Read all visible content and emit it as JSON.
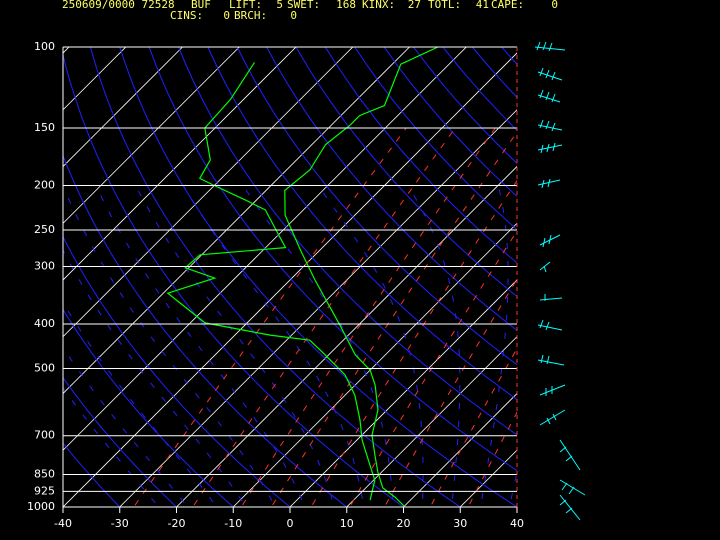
{
  "header": {
    "station": "250609/0000 72528",
    "site": "BUF",
    "indices": [
      {
        "label": "LIFT:",
        "value": 5
      },
      {
        "label": "SWET:",
        "value": 168
      },
      {
        "label": "KINX:",
        "value": 27
      },
      {
        "label": "TOTL:",
        "value": 41
      },
      {
        "label": "CAPE:",
        "value": 0
      },
      {
        "label": "CINS:",
        "value": 0
      },
      {
        "label": "BRCH:",
        "value": 0
      }
    ]
  },
  "chart_data": {
    "type": "skewt",
    "log_y": true,
    "ylim": [
      1000,
      100
    ],
    "yticks": [
      100,
      150,
      200,
      250,
      300,
      400,
      500,
      700,
      850,
      925,
      1000
    ],
    "xlim": [
      -40,
      40
    ],
    "xticks": [
      -40,
      -30,
      -20,
      -10,
      0,
      10,
      20,
      30,
      40
    ],
    "grid": true,
    "series": [
      {
        "color": "#00ff00",
        "y": [
          1000,
          951,
          909,
          839,
          771,
          698,
          615,
          543,
          504,
          467,
          402,
          321,
          276,
          232,
          205,
          185,
          163,
          148,
          141,
          134,
          109,
          100
        ],
        "values": [
          20.3,
          16.7,
          13.0,
          9.3,
          5.8,
          1.8,
          -1.6,
          -6.5,
          -10,
          -15.3,
          -23.3,
          -35.6,
          -43.5,
          -52.3,
          -56.7,
          -55.9,
          -57.6,
          -56.7,
          -56.7,
          -54.1,
          -58.5,
          -55
        ]
      },
      {
        "color": "#00ff00",
        "y": [
          966,
          874,
          790,
          715,
          647,
          571,
          516,
          467,
          434,
          423,
          398,
          343,
          318,
          302,
          283,
          273,
          226,
          215,
          200,
          193,
          176,
          150,
          130,
          108
        ],
        "values": [
          12.9,
          10.2,
          5.5,
          0.9,
          -3,
          -8.3,
          -13.6,
          -20.6,
          -25.9,
          -33.8,
          -47.4,
          -59.2,
          -53.6,
          -60.6,
          -60.3,
          -46.5,
          -56.7,
          -62,
          -70,
          -73.8,
          -75.2,
          -81.8,
          -82.3,
          -84.6
        ]
      }
    ]
  }
}
